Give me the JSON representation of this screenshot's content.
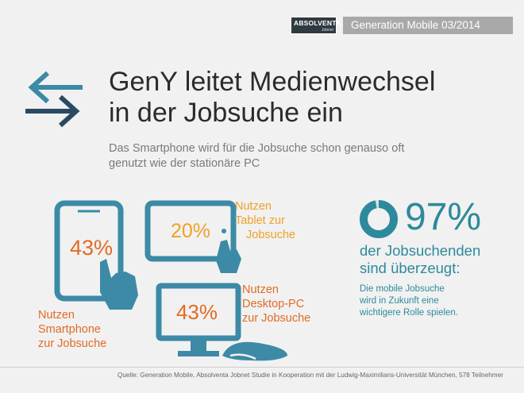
{
  "header": {
    "logo_text": "ABSOLVENTA",
    "logo_sub": "Jobnet",
    "issue": "Generation Mobile 03/2014"
  },
  "title": {
    "line1": "GenY leitet Medienwechsel",
    "line2": "in der Jobsuche ein"
  },
  "subtitle": {
    "line1": "Das Smartphone wird für die Jobsuche schon genauso oft",
    "line2": "genutzt wie der stationäre PC"
  },
  "devices": {
    "smartphone": {
      "percent": "43%",
      "label": [
        "Nutzen",
        "Smartphone",
        "zur Jobsuche"
      ]
    },
    "tablet": {
      "percent": "20%",
      "label": [
        "Nutzen",
        "Tablet zur",
        "Jobsuche"
      ]
    },
    "desktop": {
      "percent": "43%",
      "label": [
        "Nutzen",
        "Desktop-PC",
        "zur Jobsuche"
      ]
    }
  },
  "stat": {
    "value": "97%",
    "fraction": 0.97,
    "line1": "der Jobsuchenden",
    "line2": "sind überzeugt:",
    "note": [
      "Die mobile Jobsuche",
      "wird in Zukunft eine",
      "wichtigere Rolle spielen."
    ]
  },
  "footer": {
    "source": "Quelle: Generation Mobile, Absolventa Jobnet Studie in Kooperation mit der Ludwig-Maximilians-Universität München, 578 Teilnehmer"
  },
  "colors": {
    "orange": "#e36b22",
    "amber": "#f0a125",
    "teal": "#2d8a9c",
    "icon_blue": "#3c8aa6"
  },
  "icons": [
    "arrows-swap-icon",
    "smartphone-icon",
    "hand-icon",
    "tablet-icon",
    "desktop-icon",
    "mouse-icon",
    "donut-icon"
  ]
}
